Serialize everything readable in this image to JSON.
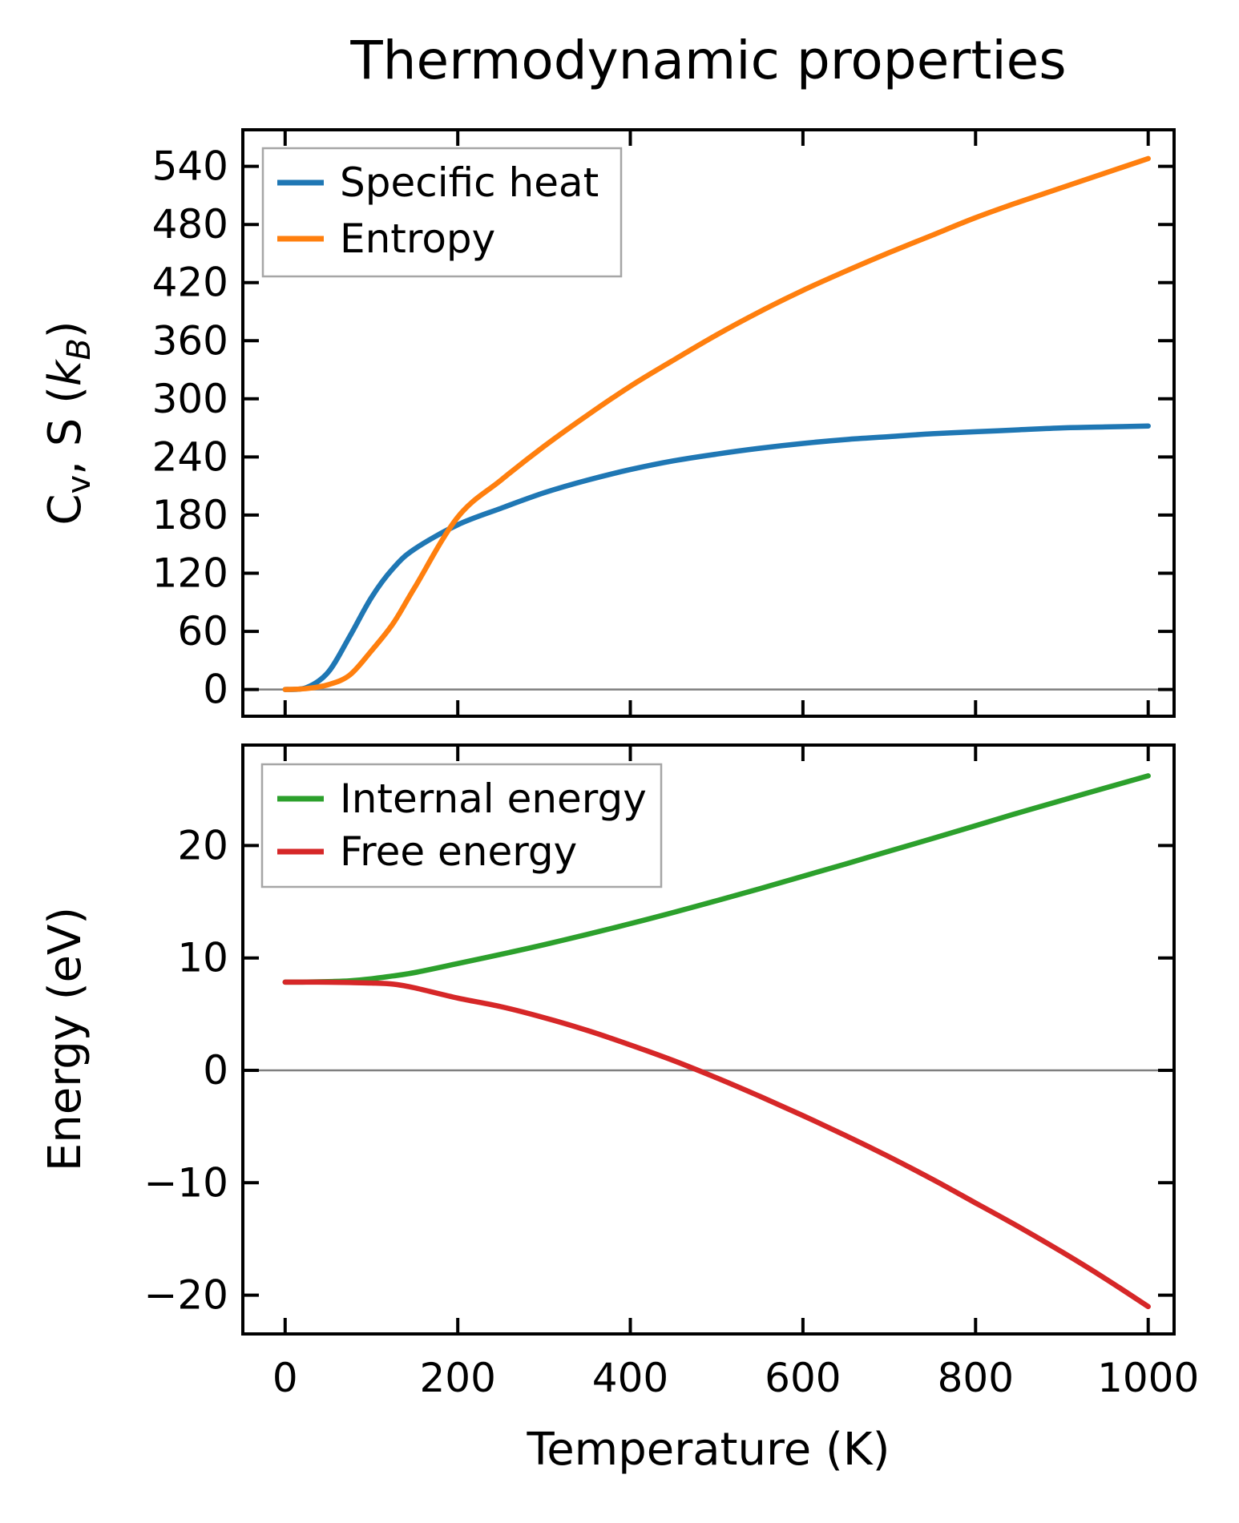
{
  "title": "Thermodynamic properties",
  "colors": {
    "specific_heat": "#1f77b4",
    "entropy": "#ff7f0e",
    "internal_energy": "#2ca02c",
    "free_energy": "#d62728",
    "zero_line": "#7f7f7f",
    "legend_border": "#a6a6a6",
    "axis": "#000000"
  },
  "chart_data": [
    {
      "type": "line",
      "title": "Thermodynamic properties",
      "xlabel": "Temperature (K)",
      "ylabel": "C_v, S (k_B)",
      "ylabel_parts": [
        {
          "t": "C"
        },
        {
          "t": "v",
          "sub": true
        },
        {
          "t": ", S ("
        },
        {
          "t": "k",
          "italic": true
        },
        {
          "t": "B",
          "sub": true,
          "italic": true
        },
        {
          "t": ")"
        }
      ],
      "x": [
        0,
        25,
        50,
        75,
        100,
        125,
        150,
        200,
        250,
        300,
        350,
        400,
        450,
        500,
        550,
        600,
        650,
        700,
        750,
        800,
        850,
        900,
        950,
        1000
      ],
      "series": [
        {
          "name": "Specific heat",
          "color": "#1f77b4",
          "values": [
            0,
            2,
            18,
            55,
            95,
            125,
            145,
            170,
            187,
            203,
            216,
            227,
            236,
            243,
            249,
            254,
            258,
            261,
            264,
            266,
            268,
            270,
            271,
            272
          ]
        },
        {
          "name": "Entropy",
          "color": "#ff7f0e",
          "values": [
            0,
            1,
            5,
            15,
            40,
            68,
            105,
            178,
            216,
            251,
            283,
            313,
            340,
            366,
            390,
            412,
            432,
            451,
            469,
            487,
            503,
            518,
            533,
            548
          ]
        }
      ],
      "xlim": [
        -49,
        1030
      ],
      "ylim": [
        -27.6,
        577.7
      ],
      "xticks": [
        0,
        200,
        400,
        600,
        800,
        1000
      ],
      "yticks": [
        0,
        60,
        120,
        180,
        240,
        300,
        360,
        420,
        480,
        540
      ],
      "show_x_tick_labels": false,
      "zero_line": true,
      "grid": false,
      "legend_position": "upper left"
    },
    {
      "type": "line",
      "title": "",
      "xlabel": "Temperature (K)",
      "ylabel": "Energy (eV)",
      "x": [
        0,
        25,
        50,
        75,
        100,
        125,
        150,
        200,
        250,
        300,
        350,
        400,
        450,
        500,
        550,
        600,
        650,
        700,
        750,
        800,
        850,
        900,
        950,
        1000
      ],
      "series": [
        {
          "name": "Internal energy",
          "color": "#2ca02c",
          "values": [
            7.85,
            7.86,
            7.9,
            7.97,
            8.15,
            8.4,
            8.7,
            9.5,
            10.32,
            11.18,
            12.1,
            13.05,
            14.05,
            15.1,
            16.17,
            17.27,
            18.38,
            19.5,
            20.63,
            21.77,
            22.92,
            24.02,
            25.12,
            26.2
          ]
        },
        {
          "name": "Free energy",
          "color": "#d62728",
          "values": [
            7.85,
            7.85,
            7.84,
            7.81,
            7.77,
            7.67,
            7.34,
            6.43,
            5.67,
            4.69,
            3.56,
            2.26,
            0.87,
            -0.67,
            -2.31,
            -4.03,
            -5.82,
            -7.7,
            -9.69,
            -11.8,
            -13.92,
            -16.15,
            -18.51,
            -21.02
          ]
        }
      ],
      "xlim": [
        -49,
        1030
      ],
      "ylim": [
        -23.45,
        28.94
      ],
      "xticks": [
        0,
        200,
        400,
        600,
        800,
        1000
      ],
      "yticks": [
        -20,
        -10,
        0,
        10,
        20
      ],
      "show_x_tick_labels": true,
      "zero_line": true,
      "grid": false,
      "legend_position": "upper left"
    }
  ]
}
